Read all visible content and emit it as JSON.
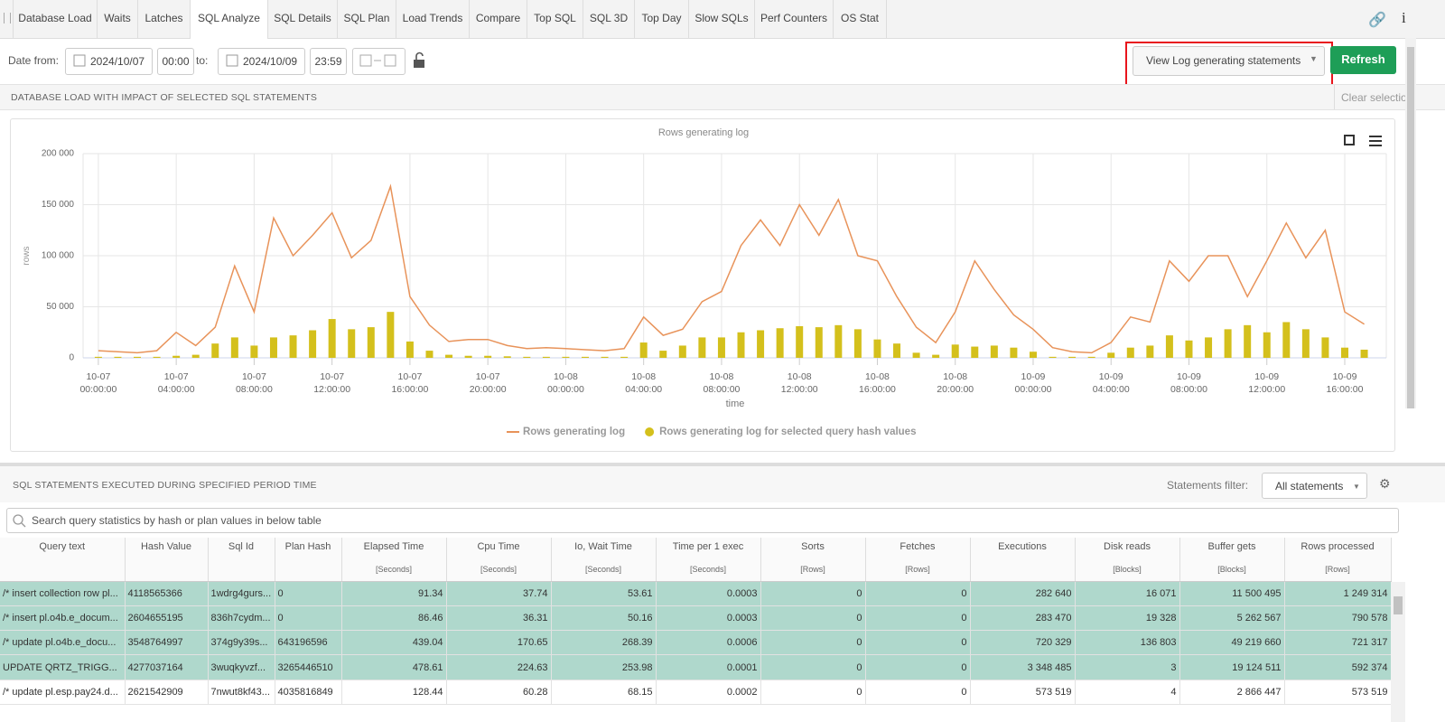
{
  "tabs": [
    "Database Load",
    "Waits",
    "Latches",
    "SQL Analyze",
    "SQL Details",
    "SQL Plan",
    "Load Trends",
    "Compare",
    "Top SQL",
    "SQL 3D",
    "Top Day",
    "Slow SQLs",
    "Perf Counters",
    "OS Stat"
  ],
  "filters": {
    "date_from_label": "Date from:",
    "date_from": "2024/10/07",
    "time_from": "00:00",
    "to_label": "to:",
    "date_to": "2024/10/09",
    "time_to": "23:59",
    "view_button": "View Log generating statements",
    "refresh_button": "Refresh"
  },
  "section1": {
    "title": "DATABASE LOAD WITH IMPACT OF SELECTED SQL STATEMENTS",
    "clear": "Clear selection"
  },
  "chart_data": {
    "type": "line",
    "title": "Rows generating log",
    "y_label": "rows",
    "x_label": "time",
    "x": [
      "10-07 00:00:00",
      "10-07 01:00:00",
      "10-07 02:00:00",
      "10-07 03:00:00",
      "10-07 04:00:00",
      "10-07 05:00:00",
      "10-07 06:00:00",
      "10-07 07:00:00",
      "10-07 08:00:00",
      "10-07 09:00:00",
      "10-07 10:00:00",
      "10-07 11:00:00",
      "10-07 12:00:00",
      "10-07 13:00:00",
      "10-07 14:00:00",
      "10-07 15:00:00",
      "10-07 16:00:00",
      "10-07 17:00:00",
      "10-07 18:00:00",
      "10-07 19:00:00",
      "10-07 20:00:00",
      "10-07 21:00:00",
      "10-07 22:00:00",
      "10-07 23:00:00",
      "10-08 00:00:00",
      "10-08 01:00:00",
      "10-08 02:00:00",
      "10-08 03:00:00",
      "10-08 04:00:00",
      "10-08 05:00:00",
      "10-08 06:00:00",
      "10-08 07:00:00",
      "10-08 08:00:00",
      "10-08 09:00:00",
      "10-08 10:00:00",
      "10-08 11:00:00",
      "10-08 12:00:00",
      "10-08 13:00:00",
      "10-08 14:00:00",
      "10-08 15:00:00",
      "10-08 16:00:00",
      "10-08 17:00:00",
      "10-08 18:00:00",
      "10-08 19:00:00",
      "10-08 20:00:00",
      "10-08 21:00:00",
      "10-08 22:00:00",
      "10-08 23:00:00",
      "10-09 00:00:00",
      "10-09 01:00:00",
      "10-09 02:00:00",
      "10-09 03:00:00",
      "10-09 04:00:00",
      "10-09 05:00:00",
      "10-09 06:00:00",
      "10-09 07:00:00",
      "10-09 08:00:00",
      "10-09 09:00:00",
      "10-09 10:00:00",
      "10-09 11:00:00",
      "10-09 12:00:00",
      "10-09 13:00:00",
      "10-09 14:00:00",
      "10-09 15:00:00",
      "10-09 16:00:00",
      "10-09 17:00:00"
    ],
    "series": [
      {
        "name": "Rows generating log",
        "color": "#e8935a",
        "style": "line",
        "values": [
          7000,
          6000,
          5000,
          7000,
          25000,
          12000,
          30000,
          90000,
          45000,
          137000,
          100000,
          120000,
          142000,
          98000,
          115000,
          168000,
          60000,
          32000,
          16000,
          18000,
          18000,
          12000,
          9000,
          10000,
          9000,
          8000,
          7000,
          9000,
          40000,
          22000,
          28000,
          55000,
          65000,
          110000,
          135000,
          110000,
          150000,
          120000,
          155000,
          100000,
          95000,
          60000,
          30000,
          15000,
          45000,
          95000,
          67000,
          42000,
          28000,
          10000,
          6000,
          5000,
          15000,
          40000,
          35000,
          95000,
          75000,
          100000,
          100000,
          60000,
          95000,
          132000,
          98000,
          125000,
          45000,
          33000
        ]
      },
      {
        "name": "Rows generating log for selected query hash values",
        "color": "#d4c01c",
        "style": "bar",
        "values": [
          1000,
          1000,
          1000,
          1000,
          2000,
          3000,
          14000,
          20000,
          12000,
          20000,
          22000,
          27000,
          38000,
          28000,
          30000,
          45000,
          16000,
          7000,
          3000,
          2000,
          2000,
          1500,
          1000,
          1000,
          1000,
          1000,
          1000,
          1000,
          15000,
          7000,
          12000,
          20000,
          20000,
          25000,
          27000,
          29000,
          31000,
          30000,
          32000,
          28000,
          18000,
          14000,
          5000,
          3000,
          13000,
          11000,
          12000,
          10000,
          6000,
          1000,
          1000,
          1000,
          5000,
          10000,
          12000,
          22000,
          17000,
          20000,
          28000,
          32000,
          25000,
          35000,
          28000,
          20000,
          10000,
          8000
        ]
      }
    ],
    "xlim": [
      "10-06 23:13:00",
      "10-09 18:08:00"
    ],
    "xticks": [
      "10-07 00:00:00",
      "10-07 04:00:00",
      "10-07 08:00:00",
      "10-07 12:00:00",
      "10-07 16:00:00",
      "10-07 20:00:00",
      "10-08 00:00:00",
      "10-08 04:00:00",
      "10-08 08:00:00",
      "10-08 12:00:00",
      "10-08 16:00:00",
      "10-08 20:00:00",
      "10-09 00:00:00",
      "10-09 04:00:00",
      "10-09 08:00:00",
      "10-09 12:00:00",
      "10-09 16:00:00"
    ],
    "ylim": [
      0,
      200000
    ],
    "yticks": [
      0,
      {
        "value": 50000,
        "label": "50 000"
      },
      {
        "value": 100000,
        "label": "100 000"
      },
      {
        "value": 150000,
        "label": "150 000"
      },
      {
        "value": 200000,
        "label": "200 000"
      }
    ],
    "grid": true
  },
  "section2": {
    "title": "SQL STATEMENTS EXECUTED DURING SPECIFIED PERIOD TIME",
    "filter_label": "Statements filter:",
    "filter_value": "All statements",
    "search_placeholder": "Search query statistics by hash or plan values in below table"
  },
  "table": {
    "columns": [
      {
        "name": "Query text"
      },
      {
        "name": "Hash Value"
      },
      {
        "name": "Sql Id"
      },
      {
        "name": "Plan Hash"
      },
      {
        "name": "Elapsed Time",
        "unit": "[Seconds]"
      },
      {
        "name": "Cpu Time",
        "unit": "[Seconds]"
      },
      {
        "name": "Io, Wait Time",
        "unit": "[Seconds]"
      },
      {
        "name": "Time per 1 exec",
        "unit": "[Seconds]"
      },
      {
        "name": "Sorts",
        "unit": "[Rows]"
      },
      {
        "name": "Fetches",
        "unit": "[Rows]"
      },
      {
        "name": "Executions"
      },
      {
        "name": "Disk reads",
        "unit": "[Blocks]"
      },
      {
        "name": "Buffer gets",
        "unit": "[Blocks]"
      },
      {
        "name": "Rows processed",
        "unit": "[Rows]"
      }
    ],
    "rows": [
      [
        "/* insert collection row pl...",
        "4118565366",
        "1wdrg4gurs...",
        "0",
        "91.34",
        "37.74",
        "53.61",
        "0.0003",
        "0",
        "0",
        "282 640",
        "16 071",
        "11 500 495",
        "1 249 314"
      ],
      [
        "/* insert pl.o4b.e_docum...",
        "2604655195",
        "836h7cydm...",
        "0",
        "86.46",
        "36.31",
        "50.16",
        "0.0003",
        "0",
        "0",
        "283 470",
        "19 328",
        "5 262 567",
        "790 578"
      ],
      [
        "/* update pl.o4b.e_docu...",
        "3548764997",
        "374g9y39s...",
        "643196596",
        "439.04",
        "170.65",
        "268.39",
        "0.0006",
        "0",
        "0",
        "720 329",
        "136 803",
        "49 219 660",
        "721 317"
      ],
      [
        "UPDATE QRTZ_TRIGG...",
        "4277037164",
        "3wuqkyvzf...",
        "3265446510",
        "478.61",
        "224.63",
        "253.98",
        "0.0001",
        "0",
        "0",
        "3 348 485",
        "3",
        "19 124 511",
        "592 374"
      ],
      [
        "/* update pl.esp.pay24.d...",
        "2621542909",
        "7nwut8kf43...",
        "4035816849",
        "128.44",
        "60.28",
        "68.15",
        "0.0002",
        "0",
        "0",
        "573 519",
        "4",
        "2 866 447",
        "573 519"
      ]
    ]
  }
}
